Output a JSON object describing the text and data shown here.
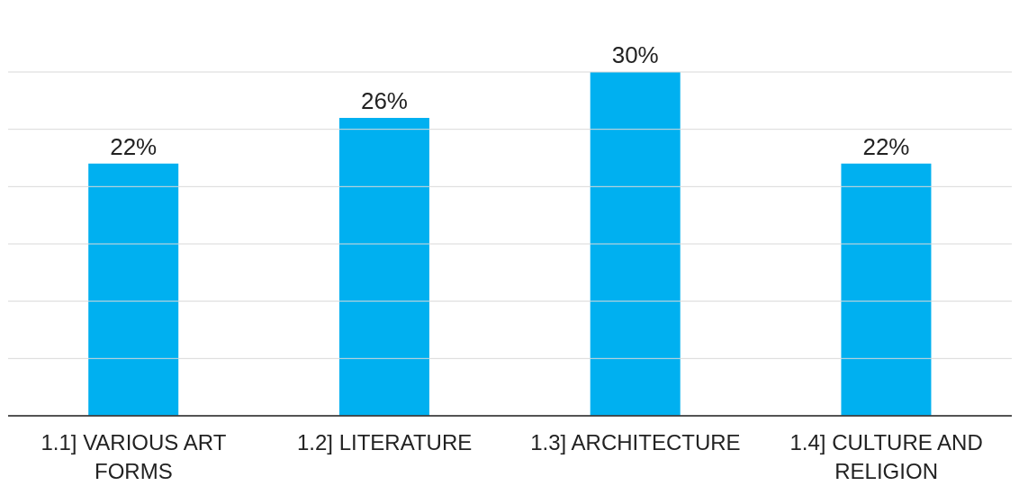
{
  "chart_data": {
    "type": "bar",
    "categories": [
      "1.1] VARIOUS ART FORMS",
      "1.2] LITERATURE",
      "1.3] ARCHITECTURE",
      "1.4] CULTURE AND RELIGION"
    ],
    "values": [
      22,
      26,
      30,
      22
    ],
    "value_labels": [
      "22%",
      "26%",
      "30%",
      "22%"
    ],
    "color": "#00b0f0",
    "ylim": [
      0,
      30
    ],
    "yticks": [
      0,
      5,
      10,
      15,
      20,
      25,
      30
    ],
    "grid": "y",
    "tick_labels": "x"
  }
}
